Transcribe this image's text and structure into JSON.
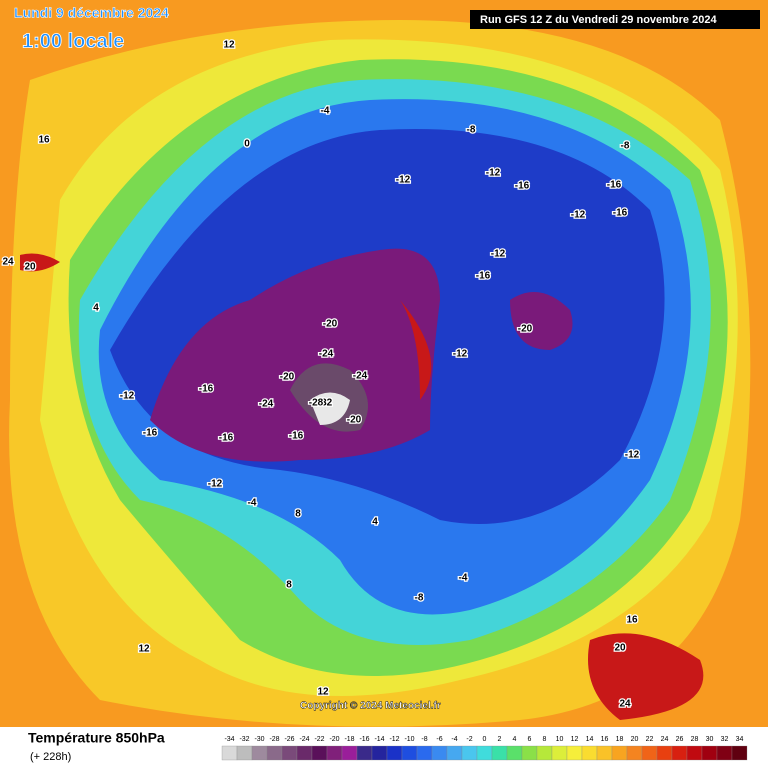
{
  "header": {
    "title": "Lundi 9 décembre 2024",
    "subtitle": "1:00 locale",
    "run": "Run GFS 12 Z du Vendredi 29 novembre 2024"
  },
  "copyright": "Copyright © 2024 Meteociel.fr",
  "footer": {
    "title": "Température 850hPa",
    "lead": "(+ 228h)"
  },
  "scale": {
    "values": [
      -34,
      -32,
      -30,
      -28,
      -26,
      -24,
      -22,
      -20,
      -18,
      -16,
      -14,
      -12,
      -10,
      -8,
      -6,
      -4,
      -2,
      0,
      2,
      4,
      6,
      8,
      10,
      12,
      14,
      16,
      18,
      20,
      22,
      24,
      26,
      28,
      30,
      32,
      34
    ],
    "colors": [
      "#d9d9d9",
      "#bdbdbd",
      "#9e8a9e",
      "#8a6a8a",
      "#7a4a7a",
      "#6a2a6a",
      "#5a105a",
      "#80207a",
      "#9a1e9a",
      "#3a2a8a",
      "#24249e",
      "#1a32c8",
      "#1e4ee0",
      "#2a6aee",
      "#3a8af0",
      "#46a8f0",
      "#4ac6ee",
      "#40dcdc",
      "#3ae0a8",
      "#5ae06a",
      "#8ae048",
      "#b6e83a",
      "#dcee3a",
      "#f6ee3a",
      "#fadc30",
      "#fac228",
      "#f8a420",
      "#f48420",
      "#f06418",
      "#e84010",
      "#d82010",
      "#c00a10",
      "#a00010",
      "#800014",
      "#600010"
    ]
  },
  "contour_labels": [
    -32,
    -28,
    -24,
    -24,
    -24,
    -20,
    -20,
    -20,
    -20,
    -16,
    -16,
    -16,
    -16,
    -16,
    -16,
    -16,
    -16,
    -12,
    -12,
    -12,
    -12,
    -12,
    -12,
    -12,
    -12,
    -8,
    -8,
    -8,
    -4,
    -4,
    -4,
    0,
    4,
    4,
    8,
    8,
    12,
    12,
    12,
    16,
    16,
    20,
    20,
    24,
    24
  ]
}
